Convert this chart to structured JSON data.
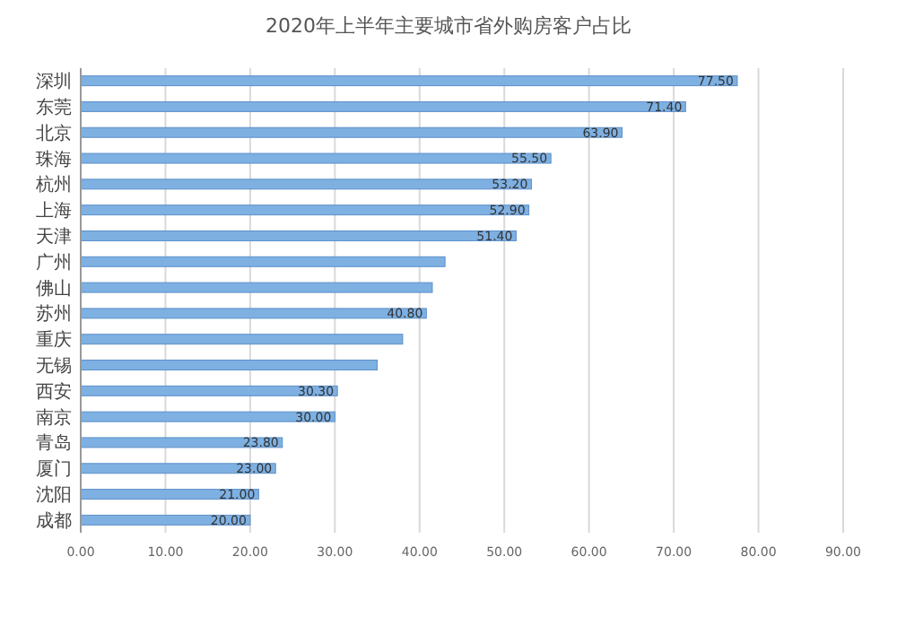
{
  "chart_data": {
    "type": "bar",
    "orientation": "horizontal",
    "title": "2020年上半年主要城市省外购房客户占比",
    "categories": [
      "深圳",
      "东莞",
      "北京",
      "珠海",
      "杭州",
      "上海",
      "天津",
      "广州",
      "佛山",
      "苏州",
      "重庆",
      "无锡",
      "西安",
      "南京",
      "青岛",
      "厦门",
      "沈阳",
      "成都"
    ],
    "values": [
      77.5,
      71.4,
      63.9,
      55.5,
      53.2,
      52.9,
      51.4,
      43.0,
      41.5,
      40.8,
      38.0,
      35.0,
      30.3,
      30.0,
      23.8,
      23.0,
      21.0,
      20.0
    ],
    "value_labels": [
      "77.50",
      "71.40",
      "63.90",
      "55.50",
      "53.20",
      "52.90",
      "51.40",
      null,
      null,
      "40.80",
      null,
      null,
      "30.30",
      "30.00",
      "23.80",
      "23.00",
      "21.00",
      "20.00"
    ],
    "color": "#7eb0e2",
    "xlim": [
      0,
      90
    ],
    "xticks": [
      {
        "value": 0,
        "label": "0.00"
      },
      {
        "value": 10,
        "label": "10.00"
      },
      {
        "value": 20,
        "label": "20.00"
      },
      {
        "value": 30,
        "label": "30.00"
      },
      {
        "value": 40,
        "label": "40.00"
      },
      {
        "value": 50,
        "label": "50.00"
      },
      {
        "value": 60,
        "label": "60.00"
      },
      {
        "value": 70,
        "label": "70.00"
      },
      {
        "value": 80,
        "label": "80.00"
      },
      {
        "value": 90,
        "label": "90.00"
      }
    ],
    "grid": "x"
  }
}
